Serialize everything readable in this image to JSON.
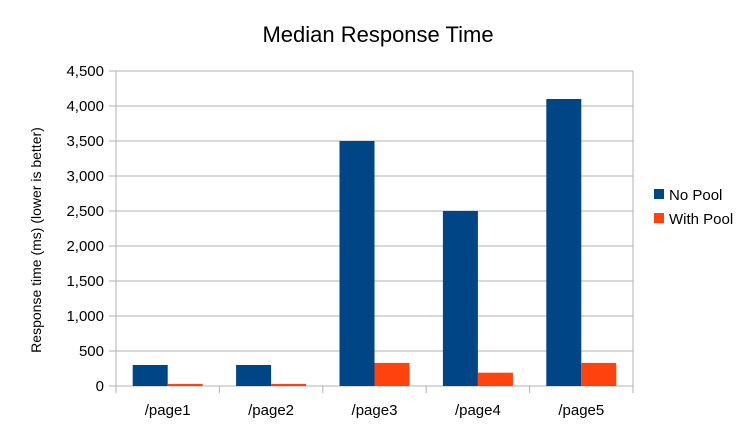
{
  "chart_data": {
    "type": "bar",
    "title": "Median Response Time",
    "xlabel": "",
    "ylabel": "Response time (ms) (lower is better)",
    "categories": [
      "/page1",
      "/page2",
      "/page3",
      "/page4",
      "/page5"
    ],
    "series": [
      {
        "name": "No Pool",
        "color": "#004586",
        "values": [
          300,
          300,
          3500,
          2500,
          4100
        ]
      },
      {
        "name": "With Pool",
        "color": "#ff420e",
        "values": [
          30,
          30,
          330,
          190,
          330
        ]
      }
    ],
    "ylim": [
      0,
      4500
    ],
    "yticks": [
      0,
      500,
      1000,
      1500,
      2000,
      2500,
      3000,
      3500,
      4000,
      4500
    ],
    "ytick_labels": [
      "0",
      "500",
      "1,000",
      "1,500",
      "2,000",
      "2,500",
      "3,000",
      "3,500",
      "4,000",
      "4,500"
    ],
    "grid": true,
    "legend_position": "right"
  }
}
